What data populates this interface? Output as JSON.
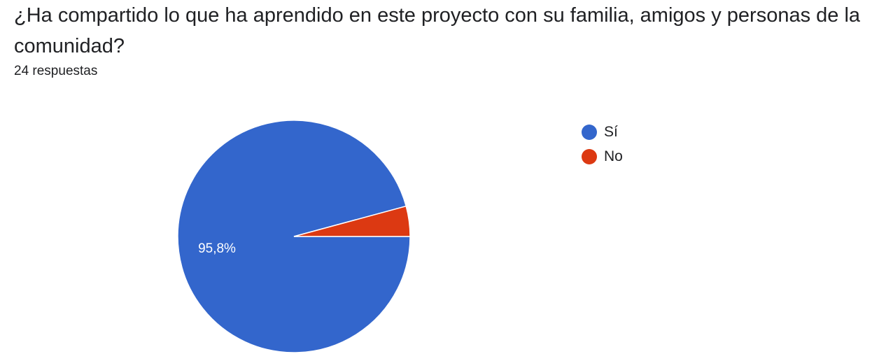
{
  "question": {
    "title": "¿Ha compartido lo que ha aprendido en este proyecto con su familia, amigos y personas de la comunidad?",
    "response_count": "24 respuestas"
  },
  "chart_data": {
    "type": "pie",
    "categories": [
      "Sí",
      "No"
    ],
    "values": [
      95.8,
      4.2
    ],
    "data_labels": [
      "95,8%",
      ""
    ],
    "colors": [
      "#3366cc",
      "#dc3912"
    ],
    "legend_position": "right"
  }
}
